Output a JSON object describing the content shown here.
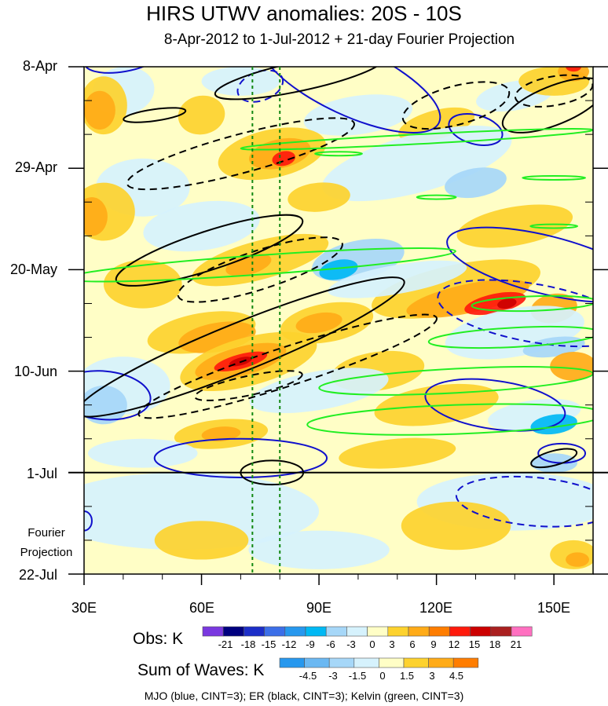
{
  "chart_data": {
    "type": "heatmap",
    "title": "HIRS UTWV anomalies: 20S - 10S",
    "subtitle": "8-Apr-2012 to 1-Jul-2012 + 21-day Fourier Projection",
    "x_ticks": [
      "30E",
      "60E",
      "90E",
      "120E",
      "150E"
    ],
    "x_tick_values": [
      30,
      60,
      90,
      120,
      150
    ],
    "xlim": [
      30,
      160
    ],
    "y_ticks": [
      "8-Apr",
      "29-Apr",
      "20-May",
      "10-Jun",
      "1-Jul",
      "22-Jul"
    ],
    "ylim": [
      "2012-04-08",
      "2012-07-22"
    ],
    "projection_label": [
      "Fourier",
      "Projection"
    ],
    "projection_start": "2012-07-01",
    "vertical_lines": [
      73,
      80
    ],
    "obs_colorbar": {
      "title": "Obs: K",
      "labels": [
        "-21",
        "-18",
        "-15",
        "-12",
        "-9",
        "-6",
        "-3",
        "0",
        "3",
        "6",
        "9",
        "12",
        "15",
        "18",
        "21"
      ],
      "colors": [
        "#7a38e0",
        "#00007f",
        "#1c2ec8",
        "#3c6fe8",
        "#2798ee",
        "#00b8f4",
        "#a6d7f8",
        "#d6f2fd",
        "#fffec6",
        "#fdd22e",
        "#ffab18",
        "#ff7d00",
        "#ff1a0c",
        "#cc0000",
        "#aa2020",
        "#ff70c0"
      ]
    },
    "waves_colorbar": {
      "title": "Sum of Waves: K",
      "labels": [
        "-4.5",
        "-3",
        "-1.5",
        "0",
        "1.5",
        "3",
        "4.5"
      ],
      "colors": [
        "#2798ee",
        "#6bb8f2",
        "#a6d7f8",
        "#d6f2fd",
        "#fffec6",
        "#fdd22e",
        "#ffab18",
        "#ff7d00"
      ]
    },
    "contours": [
      {
        "series": "MJO",
        "color": "#1010cc",
        "cint": 3
      },
      {
        "series": "ER",
        "color": "#000000",
        "cint": 3
      },
      {
        "series": "Kelvin",
        "color": "#22ee22",
        "cint": 3
      }
    ],
    "footer": "MJO (blue, CINT=3); ER (black, CINT=3); Kelvin (green, CINT=3)"
  }
}
